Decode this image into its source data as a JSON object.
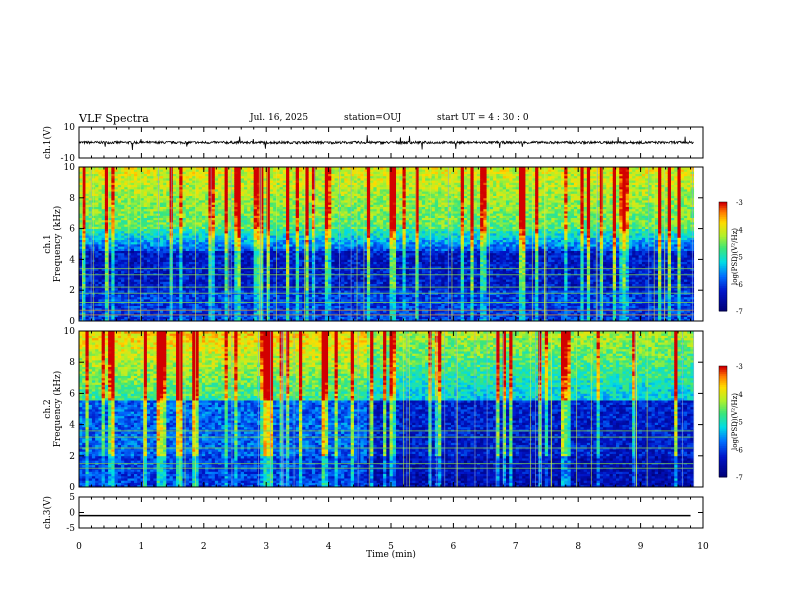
{
  "header": {
    "title": "VLF Spectra",
    "date": "Jul. 16, 2025",
    "station": "station=OUJ",
    "start_ut": "start  UT =   4 : 30 : 0"
  },
  "chart_data": [
    {
      "type": "line",
      "panel": "ch1-waveform",
      "ylabel": "ch.1(V)",
      "ylim": [
        -10,
        10
      ],
      "yticks": [
        "10",
        "-10"
      ],
      "xlim": [
        0,
        10
      ],
      "series_color": "#000000",
      "baseline": 0,
      "note_values": "continuous noisy trace near 0 V with occasional spikes up to about +5 V and down to about -5 V"
    },
    {
      "type": "heatmap",
      "panel": "ch1-spectrogram",
      "ylabel": "Frequency (kHz)",
      "channel_label": "ch.1",
      "ylim": [
        0,
        10
      ],
      "yticks": [
        "0",
        "2",
        "4",
        "6",
        "8",
        "10"
      ],
      "xlim": [
        0,
        10
      ],
      "colorbar": {
        "label": "log(PSD)(V²/Hz)",
        "range": [
          -7,
          -3
        ],
        "ticks": [
          "-3",
          "-4",
          "-5",
          "-6",
          "-7"
        ]
      }
    },
    {
      "type": "heatmap",
      "panel": "ch2-spectrogram",
      "ylabel": "Frequency (kHz)",
      "channel_label": "ch.2",
      "ylim": [
        0,
        10
      ],
      "yticks": [
        "0",
        "2",
        "4",
        "6",
        "8",
        "10"
      ],
      "xlim": [
        0,
        10
      ],
      "colorbar": {
        "label": "log(PSD)(V²/Hz)",
        "range": [
          -7,
          -3
        ],
        "ticks": [
          "-3",
          "-4",
          "-5",
          "-6",
          "-7"
        ]
      }
    },
    {
      "type": "line",
      "panel": "ch3-waveform",
      "ylabel": "ch.3(V)",
      "ylim": [
        -5,
        5
      ],
      "yticks": [
        "5",
        "0",
        "-5"
      ],
      "xlim": [
        0,
        10
      ],
      "series": [
        {
          "x": [
            0,
            9.8
          ],
          "y": [
            -1,
            -1
          ]
        }
      ]
    }
  ],
  "xaxis": {
    "label": "Time (min)",
    "ticks": [
      "0",
      "1",
      "2",
      "3",
      "4",
      "5",
      "6",
      "7",
      "8",
      "9",
      "10"
    ]
  }
}
